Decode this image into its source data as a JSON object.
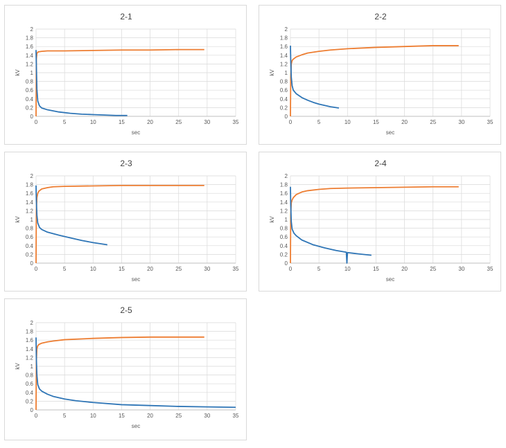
{
  "series_colors": {
    "charge": "#ED7D31",
    "decay": "#2E75B6",
    "grid": "#d9d9d9",
    "axis": "#bfbfbf"
  },
  "chart_data": [
    {
      "type": "line",
      "title": "2-1",
      "xlabel": "sec",
      "ylabel": "kV",
      "xlim": [
        0,
        35
      ],
      "ylim": [
        0,
        2
      ],
      "xticks": [
        0,
        5,
        10,
        15,
        20,
        25,
        30,
        35
      ],
      "yticks": [
        0,
        0.2,
        0.4,
        0.6,
        0.8,
        1,
        1.2,
        1.4,
        1.6,
        1.8,
        2
      ],
      "grid": true,
      "series": [
        {
          "x": [
            0,
            0.05,
            0.15,
            0.3,
            0.5,
            1,
            2,
            5,
            10,
            15,
            20,
            25,
            29.5
          ],
          "y": [
            0,
            1.3,
            1.44,
            1.47,
            1.48,
            1.49,
            1.5,
            1.5,
            1.51,
            1.52,
            1.52,
            1.53,
            1.53
          ]
        },
        {
          "x": [
            0,
            0.05,
            0.15,
            0.3,
            0.6,
            1,
            2,
            4,
            6,
            8,
            10,
            12,
            14,
            16
          ],
          "y": [
            1.52,
            1.2,
            0.62,
            0.35,
            0.24,
            0.19,
            0.15,
            0.1,
            0.07,
            0.05,
            0.04,
            0.03,
            0.02,
            0.02
          ]
        }
      ]
    },
    {
      "type": "line",
      "title": "2-2",
      "xlabel": "sec",
      "ylabel": "kV",
      "xlim": [
        0,
        35
      ],
      "ylim": [
        0,
        2
      ],
      "xticks": [
        0,
        5,
        10,
        15,
        20,
        25,
        30,
        35
      ],
      "yticks": [
        0,
        0.2,
        0.4,
        0.6,
        0.8,
        1,
        1.2,
        1.4,
        1.6,
        1.8,
        2
      ],
      "grid": true,
      "series": [
        {
          "x": [
            0,
            0.05,
            0.15,
            0.3,
            0.5,
            1,
            2,
            3,
            5,
            7,
            10,
            15,
            20,
            25,
            29.5
          ],
          "y": [
            0,
            0.9,
            1.2,
            1.28,
            1.31,
            1.36,
            1.41,
            1.45,
            1.49,
            1.52,
            1.55,
            1.58,
            1.6,
            1.62,
            1.62
          ]
        },
        {
          "x": [
            0,
            0.05,
            0.15,
            0.3,
            0.5,
            1,
            2,
            3,
            4,
            5,
            6,
            7,
            8.5
          ],
          "y": [
            1.62,
            1.3,
            0.9,
            0.7,
            0.6,
            0.52,
            0.43,
            0.37,
            0.32,
            0.28,
            0.25,
            0.22,
            0.19
          ]
        }
      ]
    },
    {
      "type": "line",
      "title": "2-3",
      "xlabel": "sec",
      "ylabel": "kV",
      "xlim": [
        0,
        35
      ],
      "ylim": [
        0,
        2
      ],
      "xticks": [
        0,
        5,
        10,
        15,
        20,
        25,
        30,
        35
      ],
      "yticks": [
        0,
        0.2,
        0.4,
        0.6,
        0.8,
        1,
        1.2,
        1.4,
        1.6,
        1.8,
        2
      ],
      "grid": true,
      "series": [
        {
          "x": [
            0,
            0.05,
            0.15,
            0.3,
            0.5,
            1,
            2,
            3,
            5,
            10,
            15,
            20,
            25,
            29.5
          ],
          "y": [
            0,
            1.2,
            1.5,
            1.6,
            1.65,
            1.7,
            1.73,
            1.75,
            1.76,
            1.77,
            1.78,
            1.78,
            1.78,
            1.78
          ]
        },
        {
          "x": [
            0,
            0.05,
            0.15,
            0.3,
            0.6,
            1,
            2,
            4,
            6,
            8,
            10,
            12.5
          ],
          "y": [
            1.78,
            1.45,
            1.1,
            0.92,
            0.82,
            0.77,
            0.71,
            0.64,
            0.58,
            0.52,
            0.47,
            0.42
          ]
        }
      ]
    },
    {
      "type": "line",
      "title": "2-4",
      "xlabel": "sec",
      "ylabel": "kV",
      "xlim": [
        0,
        35
      ],
      "ylim": [
        0,
        2
      ],
      "xticks": [
        0,
        5,
        10,
        15,
        20,
        25,
        30,
        35
      ],
      "yticks": [
        0,
        0.2,
        0.4,
        0.6,
        0.8,
        1,
        1.2,
        1.4,
        1.6,
        1.8,
        2
      ],
      "grid": true,
      "series": [
        {
          "x": [
            0,
            0.05,
            0.15,
            0.3,
            0.5,
            1,
            2,
            3,
            5,
            7,
            10,
            15,
            20,
            25,
            29.5
          ],
          "y": [
            0,
            1.1,
            1.38,
            1.45,
            1.5,
            1.57,
            1.63,
            1.66,
            1.69,
            1.71,
            1.72,
            1.73,
            1.74,
            1.75,
            1.75
          ]
        },
        {
          "x": [
            0,
            0.05,
            0.15,
            0.3,
            0.6,
            1,
            2,
            4,
            6,
            8,
            9.8,
            9.9,
            10,
            10.1,
            12,
            14.2
          ],
          "y": [
            1.75,
            1.35,
            0.95,
            0.78,
            0.69,
            0.63,
            0.53,
            0.42,
            0.35,
            0.29,
            0.25,
            0.0,
            0.24,
            0.24,
            0.21,
            0.18
          ]
        }
      ]
    },
    {
      "type": "line",
      "title": "2-5",
      "xlabel": "sec",
      "ylabel": "kV",
      "xlim": [
        0,
        35
      ],
      "ylim": [
        0,
        2
      ],
      "xticks": [
        0,
        5,
        10,
        15,
        20,
        25,
        30,
        35
      ],
      "yticks": [
        0,
        0.2,
        0.4,
        0.6,
        0.8,
        1,
        1.2,
        1.4,
        1.6,
        1.8,
        2
      ],
      "grid": true,
      "series": [
        {
          "x": [
            0,
            0.05,
            0.15,
            0.3,
            0.5,
            1,
            2,
            3,
            5,
            10,
            15,
            20,
            25,
            29.5
          ],
          "y": [
            0,
            1.1,
            1.4,
            1.47,
            1.5,
            1.53,
            1.56,
            1.58,
            1.61,
            1.64,
            1.66,
            1.67,
            1.67,
            1.67
          ]
        },
        {
          "x": [
            0,
            0.05,
            0.15,
            0.3,
            0.6,
            1,
            2,
            3,
            5,
            7,
            10,
            15,
            20,
            25,
            30,
            35
          ],
          "y": [
            1.66,
            1.2,
            0.8,
            0.58,
            0.48,
            0.43,
            0.36,
            0.31,
            0.25,
            0.21,
            0.17,
            0.12,
            0.1,
            0.08,
            0.07,
            0.06
          ]
        }
      ]
    }
  ]
}
